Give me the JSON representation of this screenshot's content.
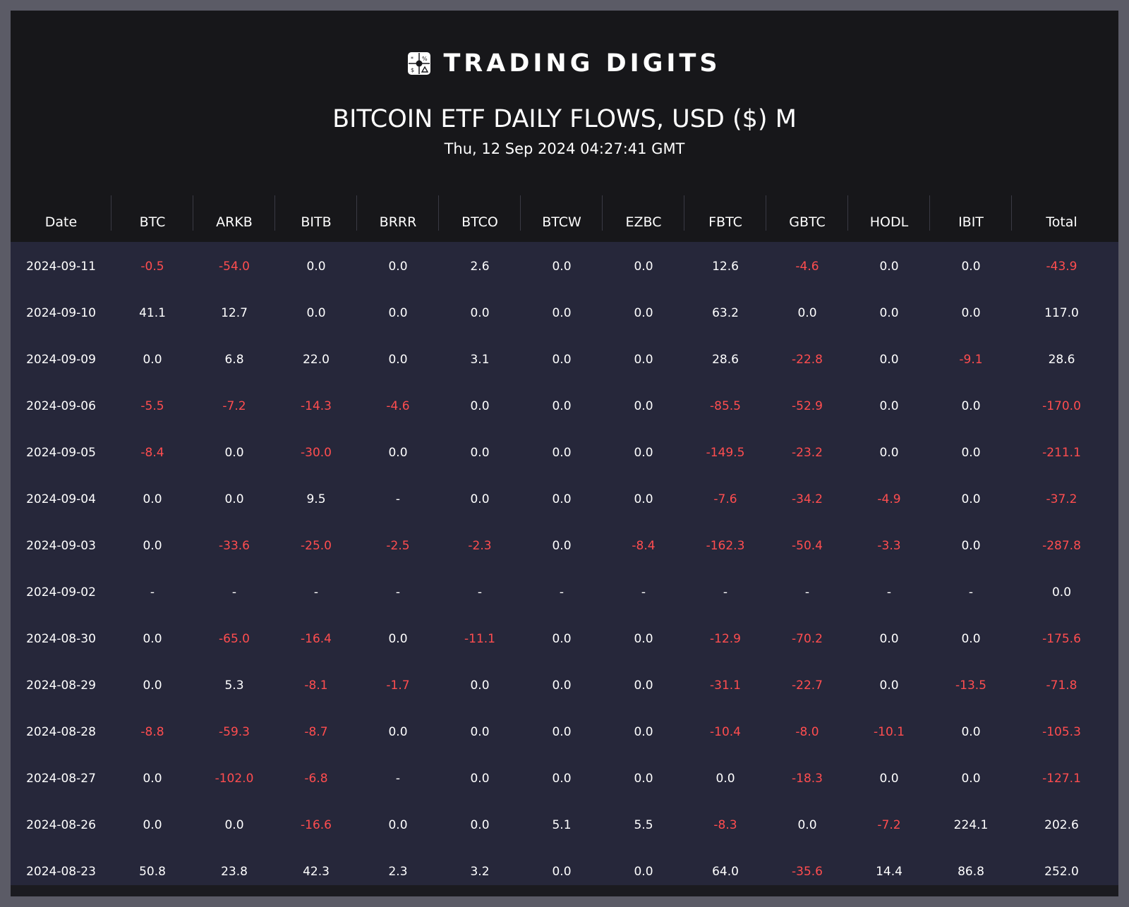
{
  "brand": {
    "name": "TRADING DIGITS",
    "logo_icon": "trading-digits-logo-icon"
  },
  "title": "BITCOIN ETF DAILY FLOWS, USD ($) M",
  "timestamp": "Thu, 12 Sep 2024 04:27:41 GMT",
  "colors": {
    "negative": "#ff4d4f",
    "positive": "#ffffff",
    "background": "#17171a",
    "table_body": "#26273a"
  },
  "columns": [
    "Date",
    "BTC",
    "ARKB",
    "BITB",
    "BRRR",
    "BTCO",
    "BTCW",
    "EZBC",
    "FBTC",
    "GBTC",
    "HODL",
    "IBIT",
    "Total"
  ],
  "rows": [
    [
      "2024-09-11",
      "-0.5",
      "-54.0",
      "0.0",
      "0.0",
      "2.6",
      "0.0",
      "0.0",
      "12.6",
      "-4.6",
      "0.0",
      "0.0",
      "-43.9"
    ],
    [
      "2024-09-10",
      "41.1",
      "12.7",
      "0.0",
      "0.0",
      "0.0",
      "0.0",
      "0.0",
      "63.2",
      "0.0",
      "0.0",
      "0.0",
      "117.0"
    ],
    [
      "2024-09-09",
      "0.0",
      "6.8",
      "22.0",
      "0.0",
      "3.1",
      "0.0",
      "0.0",
      "28.6",
      "-22.8",
      "0.0",
      "-9.1",
      "28.6"
    ],
    [
      "2024-09-06",
      "-5.5",
      "-7.2",
      "-14.3",
      "-4.6",
      "0.0",
      "0.0",
      "0.0",
      "-85.5",
      "-52.9",
      "0.0",
      "0.0",
      "-170.0"
    ],
    [
      "2024-09-05",
      "-8.4",
      "0.0",
      "-30.0",
      "0.0",
      "0.0",
      "0.0",
      "0.0",
      "-149.5",
      "-23.2",
      "0.0",
      "0.0",
      "-211.1"
    ],
    [
      "2024-09-04",
      "0.0",
      "0.0",
      "9.5",
      "-",
      "0.0",
      "0.0",
      "0.0",
      "-7.6",
      "-34.2",
      "-4.9",
      "0.0",
      "-37.2"
    ],
    [
      "2024-09-03",
      "0.0",
      "-33.6",
      "-25.0",
      "-2.5",
      "-2.3",
      "0.0",
      "-8.4",
      "-162.3",
      "-50.4",
      "-3.3",
      "0.0",
      "-287.8"
    ],
    [
      "2024-09-02",
      "-",
      "-",
      "-",
      "-",
      "-",
      "-",
      "-",
      "-",
      "-",
      "-",
      "-",
      "0.0"
    ],
    [
      "2024-08-30",
      "0.0",
      "-65.0",
      "-16.4",
      "0.0",
      "-11.1",
      "0.0",
      "0.0",
      "-12.9",
      "-70.2",
      "0.0",
      "0.0",
      "-175.6"
    ],
    [
      "2024-08-29",
      "0.0",
      "5.3",
      "-8.1",
      "-1.7",
      "0.0",
      "0.0",
      "0.0",
      "-31.1",
      "-22.7",
      "0.0",
      "-13.5",
      "-71.8"
    ],
    [
      "2024-08-28",
      "-8.8",
      "-59.3",
      "-8.7",
      "0.0",
      "0.0",
      "0.0",
      "0.0",
      "-10.4",
      "-8.0",
      "-10.1",
      "0.0",
      "-105.3"
    ],
    [
      "2024-08-27",
      "0.0",
      "-102.0",
      "-6.8",
      "-",
      "0.0",
      "0.0",
      "0.0",
      "0.0",
      "-18.3",
      "0.0",
      "0.0",
      "-127.1"
    ],
    [
      "2024-08-26",
      "0.0",
      "0.0",
      "-16.6",
      "0.0",
      "0.0",
      "5.1",
      "5.5",
      "-8.3",
      "0.0",
      "-7.2",
      "224.1",
      "202.6"
    ],
    [
      "2024-08-23",
      "50.8",
      "23.8",
      "42.3",
      "2.3",
      "3.2",
      "0.0",
      "0.0",
      "64.0",
      "-35.6",
      "14.4",
      "86.8",
      "252.0"
    ]
  ]
}
